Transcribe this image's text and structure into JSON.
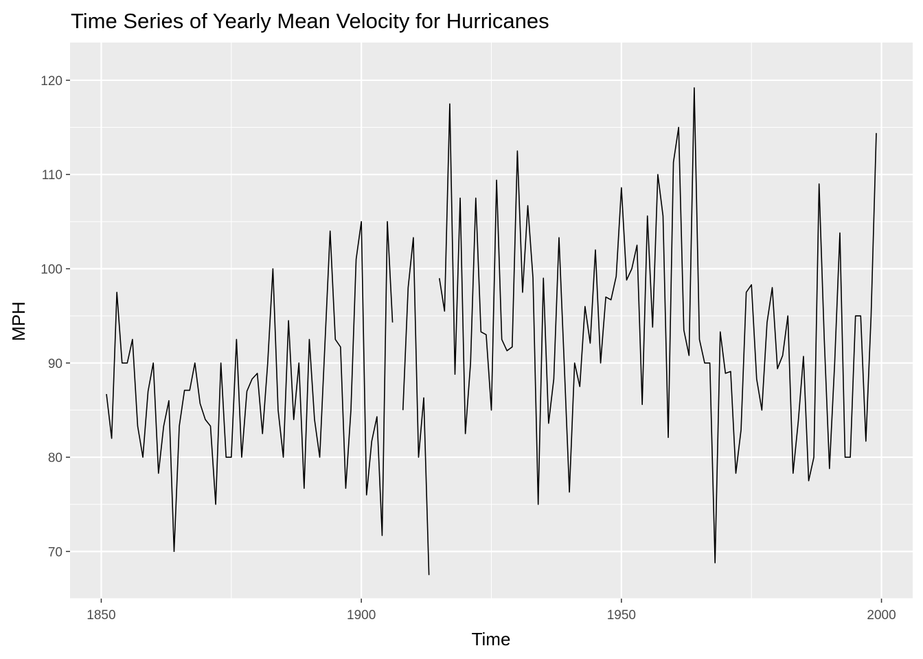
{
  "chart_data": {
    "type": "line",
    "title": "Time Series of Yearly Mean Velocity for Hurricanes",
    "xlabel": "Time",
    "ylabel": "MPH",
    "xlim": [
      1844,
      2006
    ],
    "ylim": [
      65,
      124
    ],
    "x_ticks": [
      1850,
      1900,
      1950,
      2000
    ],
    "x_tick_labels": [
      "1850",
      "1900",
      "1950",
      "2000"
    ],
    "y_ticks": [
      70,
      80,
      90,
      100,
      110,
      120
    ],
    "y_tick_labels": [
      "70",
      "80",
      "90",
      "100",
      "110",
      "120"
    ],
    "grid": true,
    "legend": "none",
    "colors": {
      "panel": "#ebebeb",
      "grid": "#ffffff",
      "line": "#000000",
      "tick_text": "#4d4d4d",
      "tick_mark": "#333333"
    },
    "series": [
      {
        "x": [
          1851,
          1852,
          1853,
          1854,
          1855,
          1856,
          1857,
          1858,
          1859,
          1860,
          1861,
          1862,
          1863,
          1864,
          1865,
          1866,
          1867,
          1868,
          1869,
          1870,
          1871,
          1872,
          1873,
          1874,
          1875,
          1876,
          1877,
          1878,
          1879,
          1880,
          1881,
          1882,
          1883,
          1884,
          1885,
          1886,
          1887,
          1888,
          1889,
          1890,
          1891,
          1892,
          1893,
          1894,
          1895,
          1896,
          1897,
          1898,
          1899,
          1900,
          1901,
          1902,
          1903,
          1904,
          1905,
          1906,
          1907,
          1908,
          1909,
          1910,
          1911,
          1912,
          1913,
          1914,
          1915,
          1916,
          1917,
          1918,
          1919,
          1920,
          1921,
          1922,
          1923,
          1924,
          1925,
          1926,
          1927,
          1928,
          1929,
          1930,
          1931,
          1932,
          1933,
          1934,
          1935,
          1936,
          1937,
          1938,
          1939,
          1940,
          1941,
          1942,
          1943,
          1944,
          1945,
          1946,
          1947,
          1948,
          1949,
          1950,
          1951,
          1952,
          1953,
          1954,
          1955,
          1956,
          1957,
          1958,
          1959,
          1960,
          1961,
          1962,
          1963,
          1964,
          1965,
          1966,
          1967,
          1968,
          1969,
          1970,
          1971,
          1972,
          1973,
          1974,
          1975,
          1976,
          1977,
          1978,
          1979,
          1980,
          1981,
          1982,
          1983,
          1984,
          1985,
          1986,
          1987,
          1988,
          1989,
          1990,
          1991,
          1992,
          1993,
          1994,
          1995,
          1996,
          1997,
          1998,
          1999
        ],
        "y": [
          86.7,
          82.0,
          97.5,
          90.0,
          90.0,
          92.5,
          83.3,
          80.0,
          87.0,
          90.0,
          78.3,
          83.3,
          86.0,
          70.0,
          83.3,
          87.1,
          87.1,
          90.0,
          85.7,
          84.0,
          83.3,
          75.0,
          90.0,
          80.0,
          80.0,
          92.5,
          80.0,
          87.0,
          88.3,
          88.9,
          82.5,
          90.0,
          100.0,
          85.0,
          80.0,
          94.5,
          84.0,
          90.0,
          76.7,
          92.5,
          84.0,
          80.0,
          92.0,
          104.0,
          92.5,
          91.7,
          76.7,
          85.0,
          101.0,
          105.0,
          76.0,
          81.7,
          84.3,
          71.7,
          105.0,
          94.3,
          null,
          85.0,
          98.0,
          103.3,
          80.0,
          86.3,
          67.5,
          null,
          99.0,
          95.5,
          117.5,
          88.8,
          107.5,
          82.5,
          90.0,
          107.5,
          93.3,
          93.0,
          85.0,
          109.4,
          92.5,
          91.3,
          91.7,
          112.5,
          97.5,
          106.7,
          99.0,
          75.0,
          99.0,
          83.6,
          88.3,
          103.3,
          90.0,
          76.3,
          90.0,
          87.5,
          96.0,
          92.1,
          102.0,
          90.0,
          97.0,
          96.7,
          99.2,
          108.6,
          98.8,
          100.0,
          102.5,
          85.6,
          105.6,
          93.8,
          110.0,
          105.6,
          82.1,
          111.3,
          115.0,
          93.5,
          90.8,
          119.2,
          92.5,
          90.0,
          90.0,
          68.8,
          93.3,
          88.9,
          89.1,
          78.3,
          82.9,
          97.5,
          98.3,
          88.3,
          85.0,
          94.3,
          98.0,
          89.4,
          90.8,
          95.0,
          78.3,
          83.8,
          90.7,
          77.5,
          80.0,
          109.0,
          92.5,
          78.8,
          90.0,
          103.8,
          80.0,
          80.0,
          95.0,
          95.0,
          81.7,
          95.0,
          114.4
        ]
      }
    ]
  }
}
